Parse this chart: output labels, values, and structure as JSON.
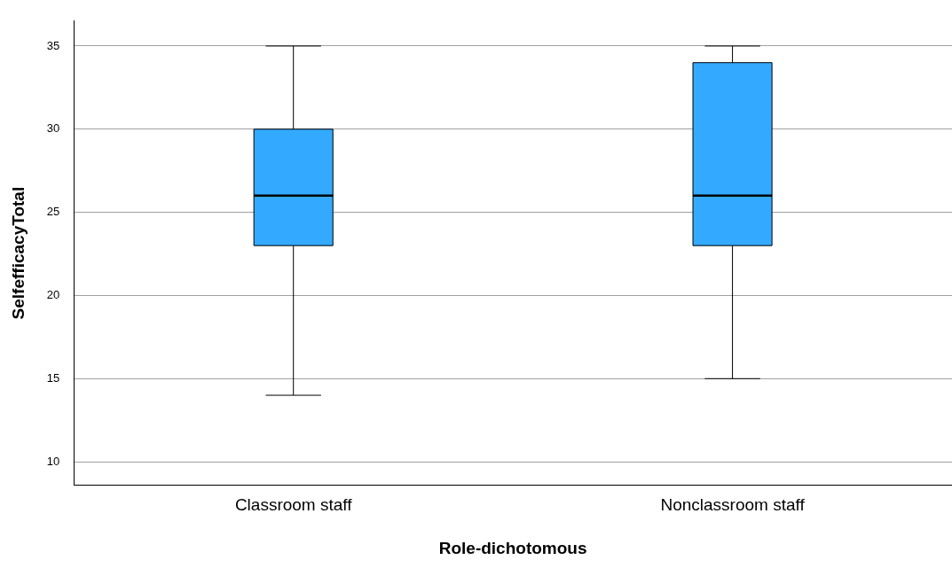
{
  "chart_data": {
    "type": "box",
    "xlabel": "Role-dichotomous",
    "ylabel": "SelfefficacyTotal",
    "categories": [
      "Classroom staff",
      "Nonclassroom staff"
    ],
    "boxes": [
      {
        "low": 14,
        "q1": 23,
        "median": 26,
        "q3": 30,
        "high": 35
      },
      {
        "low": 15,
        "q1": 23,
        "median": 26,
        "q3": 34,
        "high": 35
      }
    ],
    "color": "#33aaff",
    "ylim": [
      8.6,
      36.5
    ],
    "yticks": [
      10,
      15,
      20,
      25,
      30,
      35
    ],
    "grid": "y",
    "legend": false
  }
}
